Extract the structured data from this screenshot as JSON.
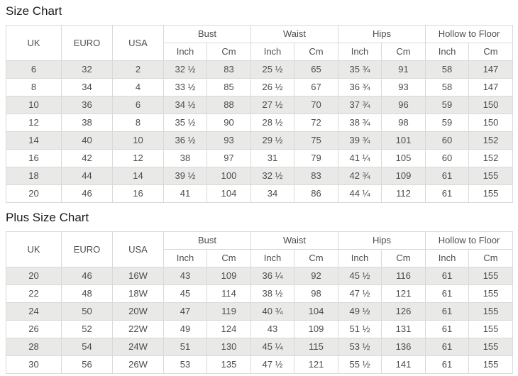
{
  "colors": {
    "stripe": "#e9e9e7",
    "border": "#d9d9d9",
    "text": "#4d4d4d",
    "title": "#1c1c1c",
    "header_bg": "#ffffff"
  },
  "tables": [
    {
      "title": "Size Chart",
      "header": {
        "plain_cols": [
          "UK",
          "EURO",
          "USA"
        ],
        "groups": [
          "Bust",
          "Waist",
          "Hips",
          "Hollow to Floor"
        ],
        "sub": [
          "Inch",
          "Cm"
        ]
      },
      "rows": [
        [
          "6",
          "32",
          "2",
          "32 ½",
          "83",
          "25 ½",
          "65",
          "35 ¾",
          "91",
          "58",
          "147"
        ],
        [
          "8",
          "34",
          "4",
          "33 ½",
          "85",
          "26 ½",
          "67",
          "36 ¾",
          "93",
          "58",
          "147"
        ],
        [
          "10",
          "36",
          "6",
          "34 ½",
          "88",
          "27 ½",
          "70",
          "37 ¾",
          "96",
          "59",
          "150"
        ],
        [
          "12",
          "38",
          "8",
          "35 ½",
          "90",
          "28 ½",
          "72",
          "38 ¾",
          "98",
          "59",
          "150"
        ],
        [
          "14",
          "40",
          "10",
          "36 ½",
          "93",
          "29 ½",
          "75",
          "39 ¾",
          "101",
          "60",
          "152"
        ],
        [
          "16",
          "42",
          "12",
          "38",
          "97",
          "31",
          "79",
          "41 ¼",
          "105",
          "60",
          "152"
        ],
        [
          "18",
          "44",
          "14",
          "39 ½",
          "100",
          "32 ½",
          "83",
          "42 ¾",
          "109",
          "61",
          "155"
        ],
        [
          "20",
          "46",
          "16",
          "41",
          "104",
          "34",
          "86",
          "44 ¼",
          "112",
          "61",
          "155"
        ]
      ]
    },
    {
      "title": "Plus Size Chart",
      "header": {
        "plain_cols": [
          "UK",
          "EURO",
          "USA"
        ],
        "groups": [
          "Bust",
          "Waist",
          "Hips",
          "Hollow to Floor"
        ],
        "sub": [
          "Inch",
          "Cm"
        ]
      },
      "rows": [
        [
          "20",
          "46",
          "16W",
          "43",
          "109",
          "36 ¼",
          "92",
          "45 ½",
          "116",
          "61",
          "155"
        ],
        [
          "22",
          "48",
          "18W",
          "45",
          "114",
          "38 ½",
          "98",
          "47 ½",
          "121",
          "61",
          "155"
        ],
        [
          "24",
          "50",
          "20W",
          "47",
          "119",
          "40 ¾",
          "104",
          "49 ½",
          "126",
          "61",
          "155"
        ],
        [
          "26",
          "52",
          "22W",
          "49",
          "124",
          "43",
          "109",
          "51 ½",
          "131",
          "61",
          "155"
        ],
        [
          "28",
          "54",
          "24W",
          "51",
          "130",
          "45 ¼",
          "115",
          "53 ½",
          "136",
          "61",
          "155"
        ],
        [
          "30",
          "56",
          "26W",
          "53",
          "135",
          "47 ½",
          "121",
          "55 ½",
          "141",
          "61",
          "155"
        ]
      ]
    }
  ]
}
